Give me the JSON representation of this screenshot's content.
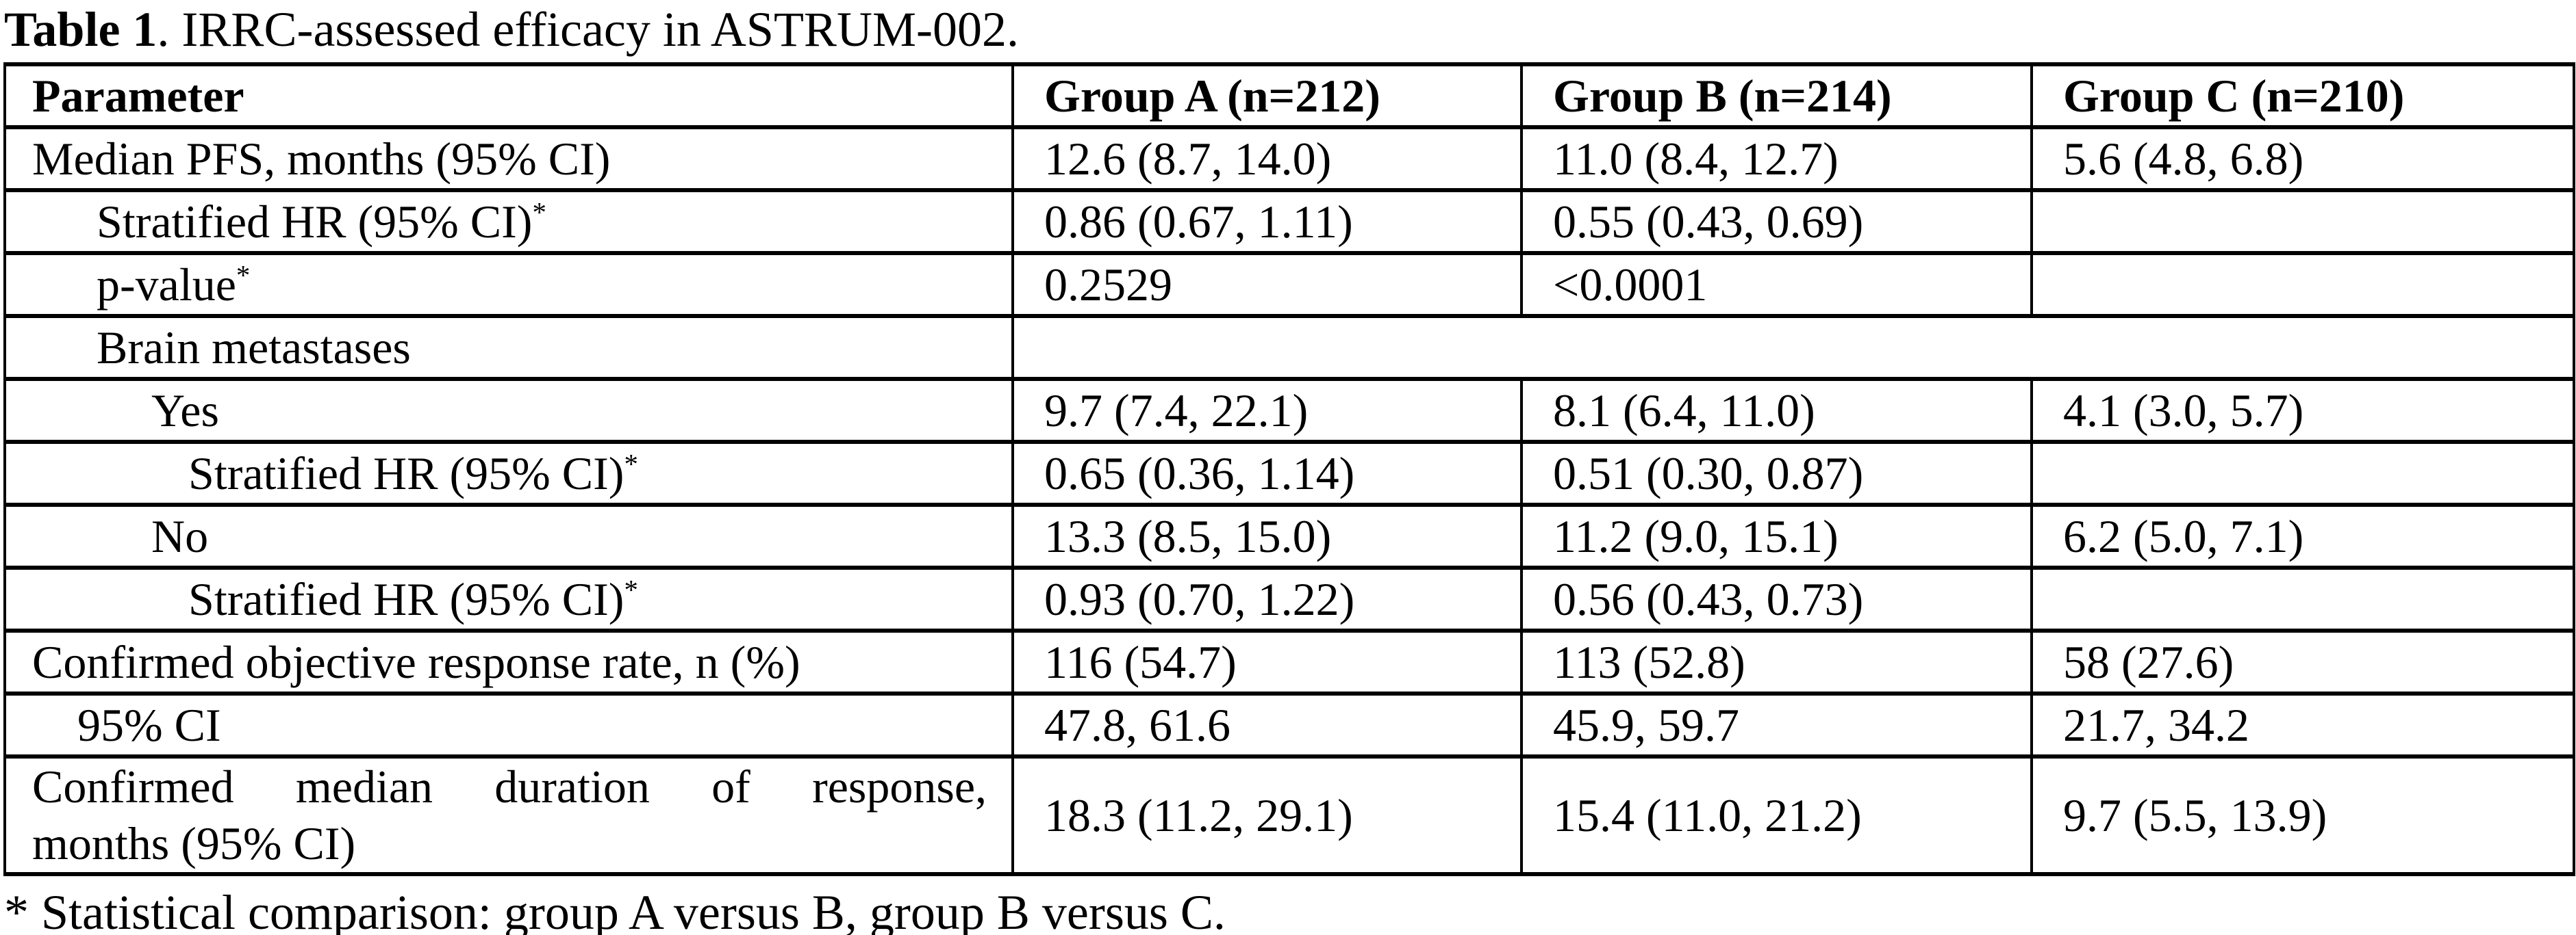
{
  "caption": {
    "label": "Table 1",
    "text": ". IRRC-assessed efficacy in ASTRUM-002."
  },
  "table": {
    "columns": {
      "parameter": "Parameter",
      "group_a": "Group A (n=212)",
      "group_b": "Group B (n=214)",
      "group_c": "Group C (n=210)"
    },
    "rows": [
      {
        "param": "Median PFS, months (95% CI)",
        "a": "12.6 (8.7, 14.0)",
        "b": "11.0 (8.4, 12.7)",
        "c": "5.6 (4.8, 6.8)"
      },
      {
        "param": "Stratified HR (95% CI)",
        "sup": "*",
        "a": "0.86 (0.67, 1.11)",
        "b": "0.55 (0.43, 0.69)",
        "c": ""
      },
      {
        "param": "p-value",
        "sup": "*",
        "a": "0.2529",
        "b": "<0.0001",
        "c": ""
      },
      {
        "param": "Brain metastases",
        "merged_cell": ""
      },
      {
        "param": "Yes",
        "a": "9.7 (7.4, 22.1)",
        "b": "8.1 (6.4, 11.0)",
        "c": "4.1 (3.0, 5.7)"
      },
      {
        "param": "Stratified HR (95% CI)",
        "sup": "*",
        "a": "0.65 (0.36, 1.14)",
        "b": "0.51 (0.30, 0.87)",
        "c": ""
      },
      {
        "param": "No",
        "a": "13.3 (8.5, 15.0)",
        "b": "11.2 (9.0, 15.1)",
        "c": "6.2 (5.0, 7.1)"
      },
      {
        "param": "Stratified HR (95% CI)",
        "sup": "*",
        "a": "0.93 (0.70, 1.22)",
        "b": "0.56 (0.43, 0.73)",
        "c": ""
      },
      {
        "param": "Confirmed objective response rate, n (%)",
        "a": "116 (54.7)",
        "b": "113 (52.8)",
        "c": "58 (27.6)"
      },
      {
        "param": "95% CI",
        "a": "47.8, 61.6",
        "b": "45.9, 59.7",
        "c": "21.7, 34.2"
      },
      {
        "param_line1": "Confirmed median duration of response,",
        "param_line2": "months (95% CI)",
        "a": "18.3 (11.2, 29.1)",
        "b": "15.4 (11.0, 21.2)",
        "c": "9.7 (5.5, 13.9)"
      }
    ]
  },
  "footnote": "* Statistical comparison: group A versus B, group B versus C.",
  "colors": {
    "text": "#000000",
    "background": "#ffffff",
    "border": "#000000"
  }
}
